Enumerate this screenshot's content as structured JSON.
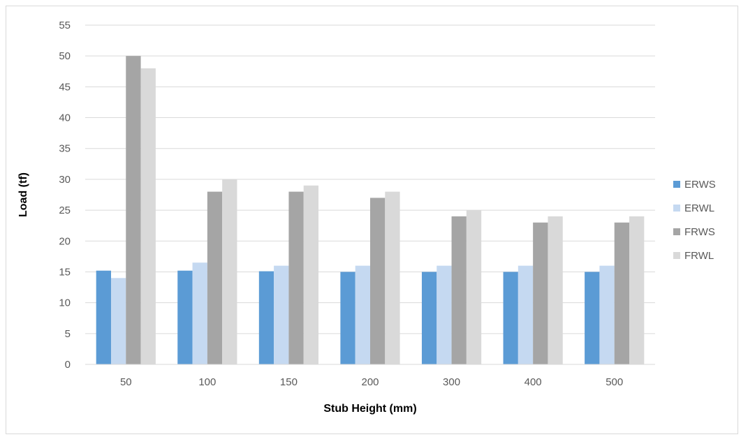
{
  "chart_data": {
    "type": "bar",
    "title": "",
    "xlabel": "Stub Height (mm)",
    "ylabel": "Load (tf)",
    "categories": [
      "50",
      "100",
      "150",
      "200",
      "300",
      "400",
      "500"
    ],
    "ylim": [
      0,
      55
    ],
    "ytick_step": 5,
    "grid": true,
    "legend_position": "right",
    "series": [
      {
        "name": "ERWS",
        "color": "#5b9bd5",
        "values": [
          15.2,
          15.2,
          15.1,
          15.0,
          15.0,
          15.0,
          15.0
        ]
      },
      {
        "name": "ERWL",
        "color": "#c5d9f1",
        "values": [
          14.0,
          16.5,
          16.0,
          16.0,
          16.0,
          16.0,
          16.0
        ]
      },
      {
        "name": "FRWS",
        "color": "#a5a5a5",
        "values": [
          50.0,
          28.0,
          28.0,
          27.0,
          24.0,
          23.0,
          23.0
        ]
      },
      {
        "name": "FRWL",
        "color": "#d9d9d9",
        "values": [
          48.0,
          30.0,
          29.0,
          28.0,
          25.0,
          24.0,
          24.0
        ]
      }
    ]
  }
}
